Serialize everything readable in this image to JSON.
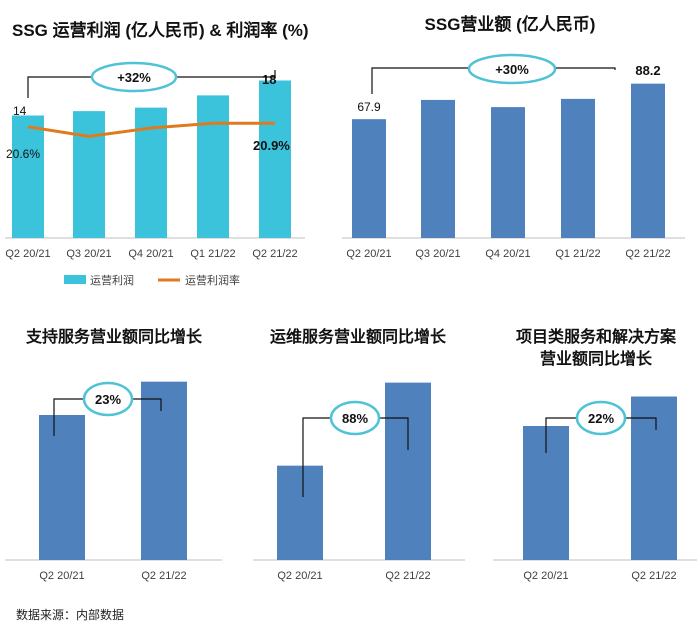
{
  "colors": {
    "cyan_bar": "#3cc3dc",
    "blue_bar": "#4f81bd",
    "margin_line": "#e07a1e",
    "bracket": "#111111",
    "ellipse": "#4fc3d6",
    "axis": "#bfbfbf"
  },
  "chart_data": [
    {
      "type": "bar",
      "title": "SSG 运营利润 (亿人民币) & 利润率 (%)",
      "categories": [
        "Q2 20/21",
        "Q3 20/21",
        "Q4 20/21",
        "Q1 21/22",
        "Q2 21/22"
      ],
      "series": [
        {
          "name": "运营利润",
          "type": "bar",
          "values": [
            14,
            14.5,
            14.9,
            16.3,
            18
          ]
        },
        {
          "name": "运营利润率",
          "type": "line",
          "unit": "%",
          "values": [
            20.6,
            19.8,
            20.5,
            20.9,
            20.9
          ]
        }
      ],
      "data_labels": {
        "first_value": "14",
        "last_value": "18",
        "first_margin": "20.6%",
        "last_margin": "20.9%"
      },
      "growth": "+32%",
      "ylim": [
        0,
        20
      ],
      "legend": [
        "运营利润",
        "运营利润率"
      ],
      "legend_position": "bottom"
    },
    {
      "type": "bar",
      "title": "SSG营业额 (亿人民币)",
      "categories": [
        "Q2 20/21",
        "Q3 20/21",
        "Q4 20/21",
        "Q1 21/22",
        "Q2 21/22"
      ],
      "series": [
        {
          "values": [
            67.9,
            78.9,
            74.8,
            79.5,
            88.2
          ]
        }
      ],
      "data_labels": {
        "first_value": "67.9",
        "last_value": "88.2"
      },
      "growth": "+30%",
      "ylim": [
        0,
        100
      ]
    },
    {
      "type": "bar",
      "title": "支持服务营业额同比增长",
      "categories": [
        "Q2 20/21",
        "Q2 21/22"
      ],
      "series": [
        {
          "values": [
            100,
            123
          ]
        }
      ],
      "growth": "23%",
      "ylim": [
        0,
        140
      ]
    },
    {
      "type": "bar",
      "title": "运维服务营业额同比增长",
      "categories": [
        "Q2 20/21",
        "Q2 21/22"
      ],
      "series": [
        {
          "values": [
            100,
            188
          ]
        }
      ],
      "growth": "88%",
      "ylim": [
        0,
        230
      ]
    },
    {
      "type": "bar",
      "title_lines": [
        "项目类服务和解决方案",
        "营业额同比增长"
      ],
      "title": "项目类服务和解决方案营业额同比增长",
      "categories": [
        "Q2 20/21",
        "Q2 21/22"
      ],
      "series": [
        {
          "values": [
            100,
            122
          ]
        }
      ],
      "growth": "22%",
      "ylim": [
        0,
        150
      ]
    }
  ],
  "source": "数据来源：内部数据"
}
